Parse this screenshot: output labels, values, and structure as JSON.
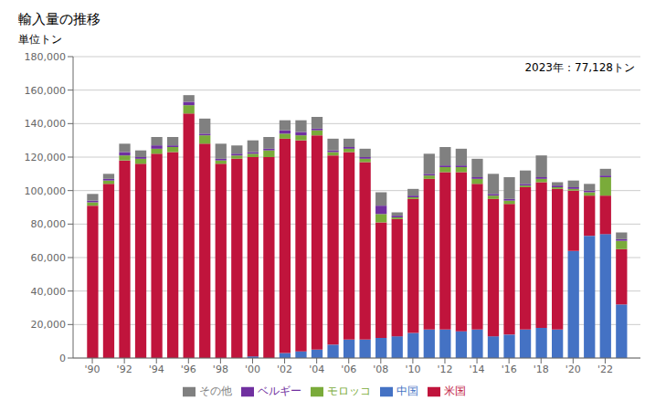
{
  "chart_data": {
    "type": "bar",
    "stacked": true,
    "title": "輸入量の推移",
    "ylabel": "単位トン",
    "annotation": "2023年：77,128トン",
    "x": [
      1990,
      1991,
      1992,
      1993,
      1994,
      1995,
      1996,
      1997,
      1998,
      1999,
      2000,
      2001,
      2002,
      2003,
      2004,
      2005,
      2006,
      2007,
      2008,
      2009,
      2010,
      2011,
      2012,
      2013,
      2014,
      2015,
      2016,
      2017,
      2018,
      2019,
      2020,
      2021,
      2022,
      2023
    ],
    "series": [
      {
        "name": "中国",
        "color": "#4472C4",
        "values": [
          0,
          0,
          0,
          0,
          0,
          0,
          0,
          0,
          0,
          0,
          1000,
          0,
          3000,
          4000,
          5000,
          8000,
          11000,
          11000,
          12000,
          13000,
          15000,
          17000,
          17000,
          16000,
          17000,
          13000,
          14000,
          17000,
          18000,
          17000,
          64000,
          73000,
          74000,
          32000
        ]
      },
      {
        "name": "米国",
        "color": "#C0143C",
        "values": [
          91000,
          104000,
          118000,
          116000,
          122000,
          123000,
          146000,
          128000,
          116000,
          119000,
          119000,
          120000,
          128000,
          126000,
          128000,
          113000,
          112000,
          106000,
          69000,
          70000,
          80000,
          90000,
          94000,
          95000,
          87000,
          82000,
          78000,
          85000,
          87000,
          84000,
          36000,
          24000,
          23000,
          33000
        ]
      },
      {
        "name": "モロッコ",
        "color": "#7AAB3A",
        "values": [
          2000,
          2000,
          3000,
          3000,
          3000,
          3000,
          5000,
          5000,
          2000,
          2000,
          2000,
          4000,
          3000,
          3000,
          3000,
          2000,
          2000,
          2000,
          5000,
          1000,
          1000,
          2000,
          3000,
          3000,
          3000,
          2000,
          2000,
          1000,
          2000,
          1000,
          1000,
          2000,
          11000,
          5000
        ]
      },
      {
        "name": "ベルギー",
        "color": "#7030A0",
        "values": [
          1000,
          1000,
          2000,
          1000,
          2000,
          1000,
          2000,
          1000,
          1000,
          1000,
          1000,
          1000,
          2000,
          2000,
          1000,
          1000,
          1000,
          1000,
          5000,
          1000,
          1000,
          1000,
          1000,
          1000,
          1000,
          1000,
          1000,
          1000,
          1000,
          1000,
          1000,
          1000,
          1000,
          1000
        ]
      },
      {
        "name": "その他",
        "color": "#808080",
        "values": [
          4000,
          3000,
          5000,
          4000,
          5000,
          5000,
          4000,
          9000,
          9000,
          5000,
          7000,
          7000,
          6000,
          7000,
          7000,
          7000,
          5000,
          5000,
          8000,
          2000,
          4000,
          12000,
          11000,
          10000,
          11000,
          12000,
          13000,
          8000,
          13000,
          2000,
          4000,
          4000,
          4000,
          4000
        ]
      }
    ],
    "xlim": [
      1988.8,
      2024.2
    ],
    "xticks": [
      {
        "value": 1990,
        "label": "'90"
      },
      {
        "value": 1992,
        "label": "'92"
      },
      {
        "value": 1994,
        "label": "'94"
      },
      {
        "value": 1996,
        "label": "'96"
      },
      {
        "value": 1998,
        "label": "'98"
      },
      {
        "value": 2000,
        "label": "'00"
      },
      {
        "value": 2002,
        "label": "'02"
      },
      {
        "value": 2004,
        "label": "'04"
      },
      {
        "value": 2006,
        "label": "'06"
      },
      {
        "value": 2008,
        "label": "'08"
      },
      {
        "value": 2010,
        "label": "'10"
      },
      {
        "value": 2012,
        "label": "'12"
      },
      {
        "value": 2014,
        "label": "'14"
      },
      {
        "value": 2016,
        "label": "'16"
      },
      {
        "value": 2018,
        "label": "'18"
      },
      {
        "value": 2020,
        "label": "'20"
      },
      {
        "value": 2022,
        "label": "'22"
      }
    ],
    "ylim": [
      0,
      180000
    ],
    "yticks": [
      0,
      {
        "value": 20000,
        "label": "20,000"
      },
      {
        "value": 40000,
        "label": "40,000"
      },
      {
        "value": 60000,
        "label": "60,000"
      },
      {
        "value": 80000,
        "label": "80,000"
      },
      {
        "value": 100000,
        "label": "100,000"
      },
      {
        "value": 120000,
        "label": "120,000"
      },
      {
        "value": 140000,
        "label": "140,000"
      },
      {
        "value": 160000,
        "label": "160,000"
      },
      {
        "value": 180000,
        "label": "180,000"
      }
    ],
    "grid": true,
    "legend": "bottom"
  }
}
